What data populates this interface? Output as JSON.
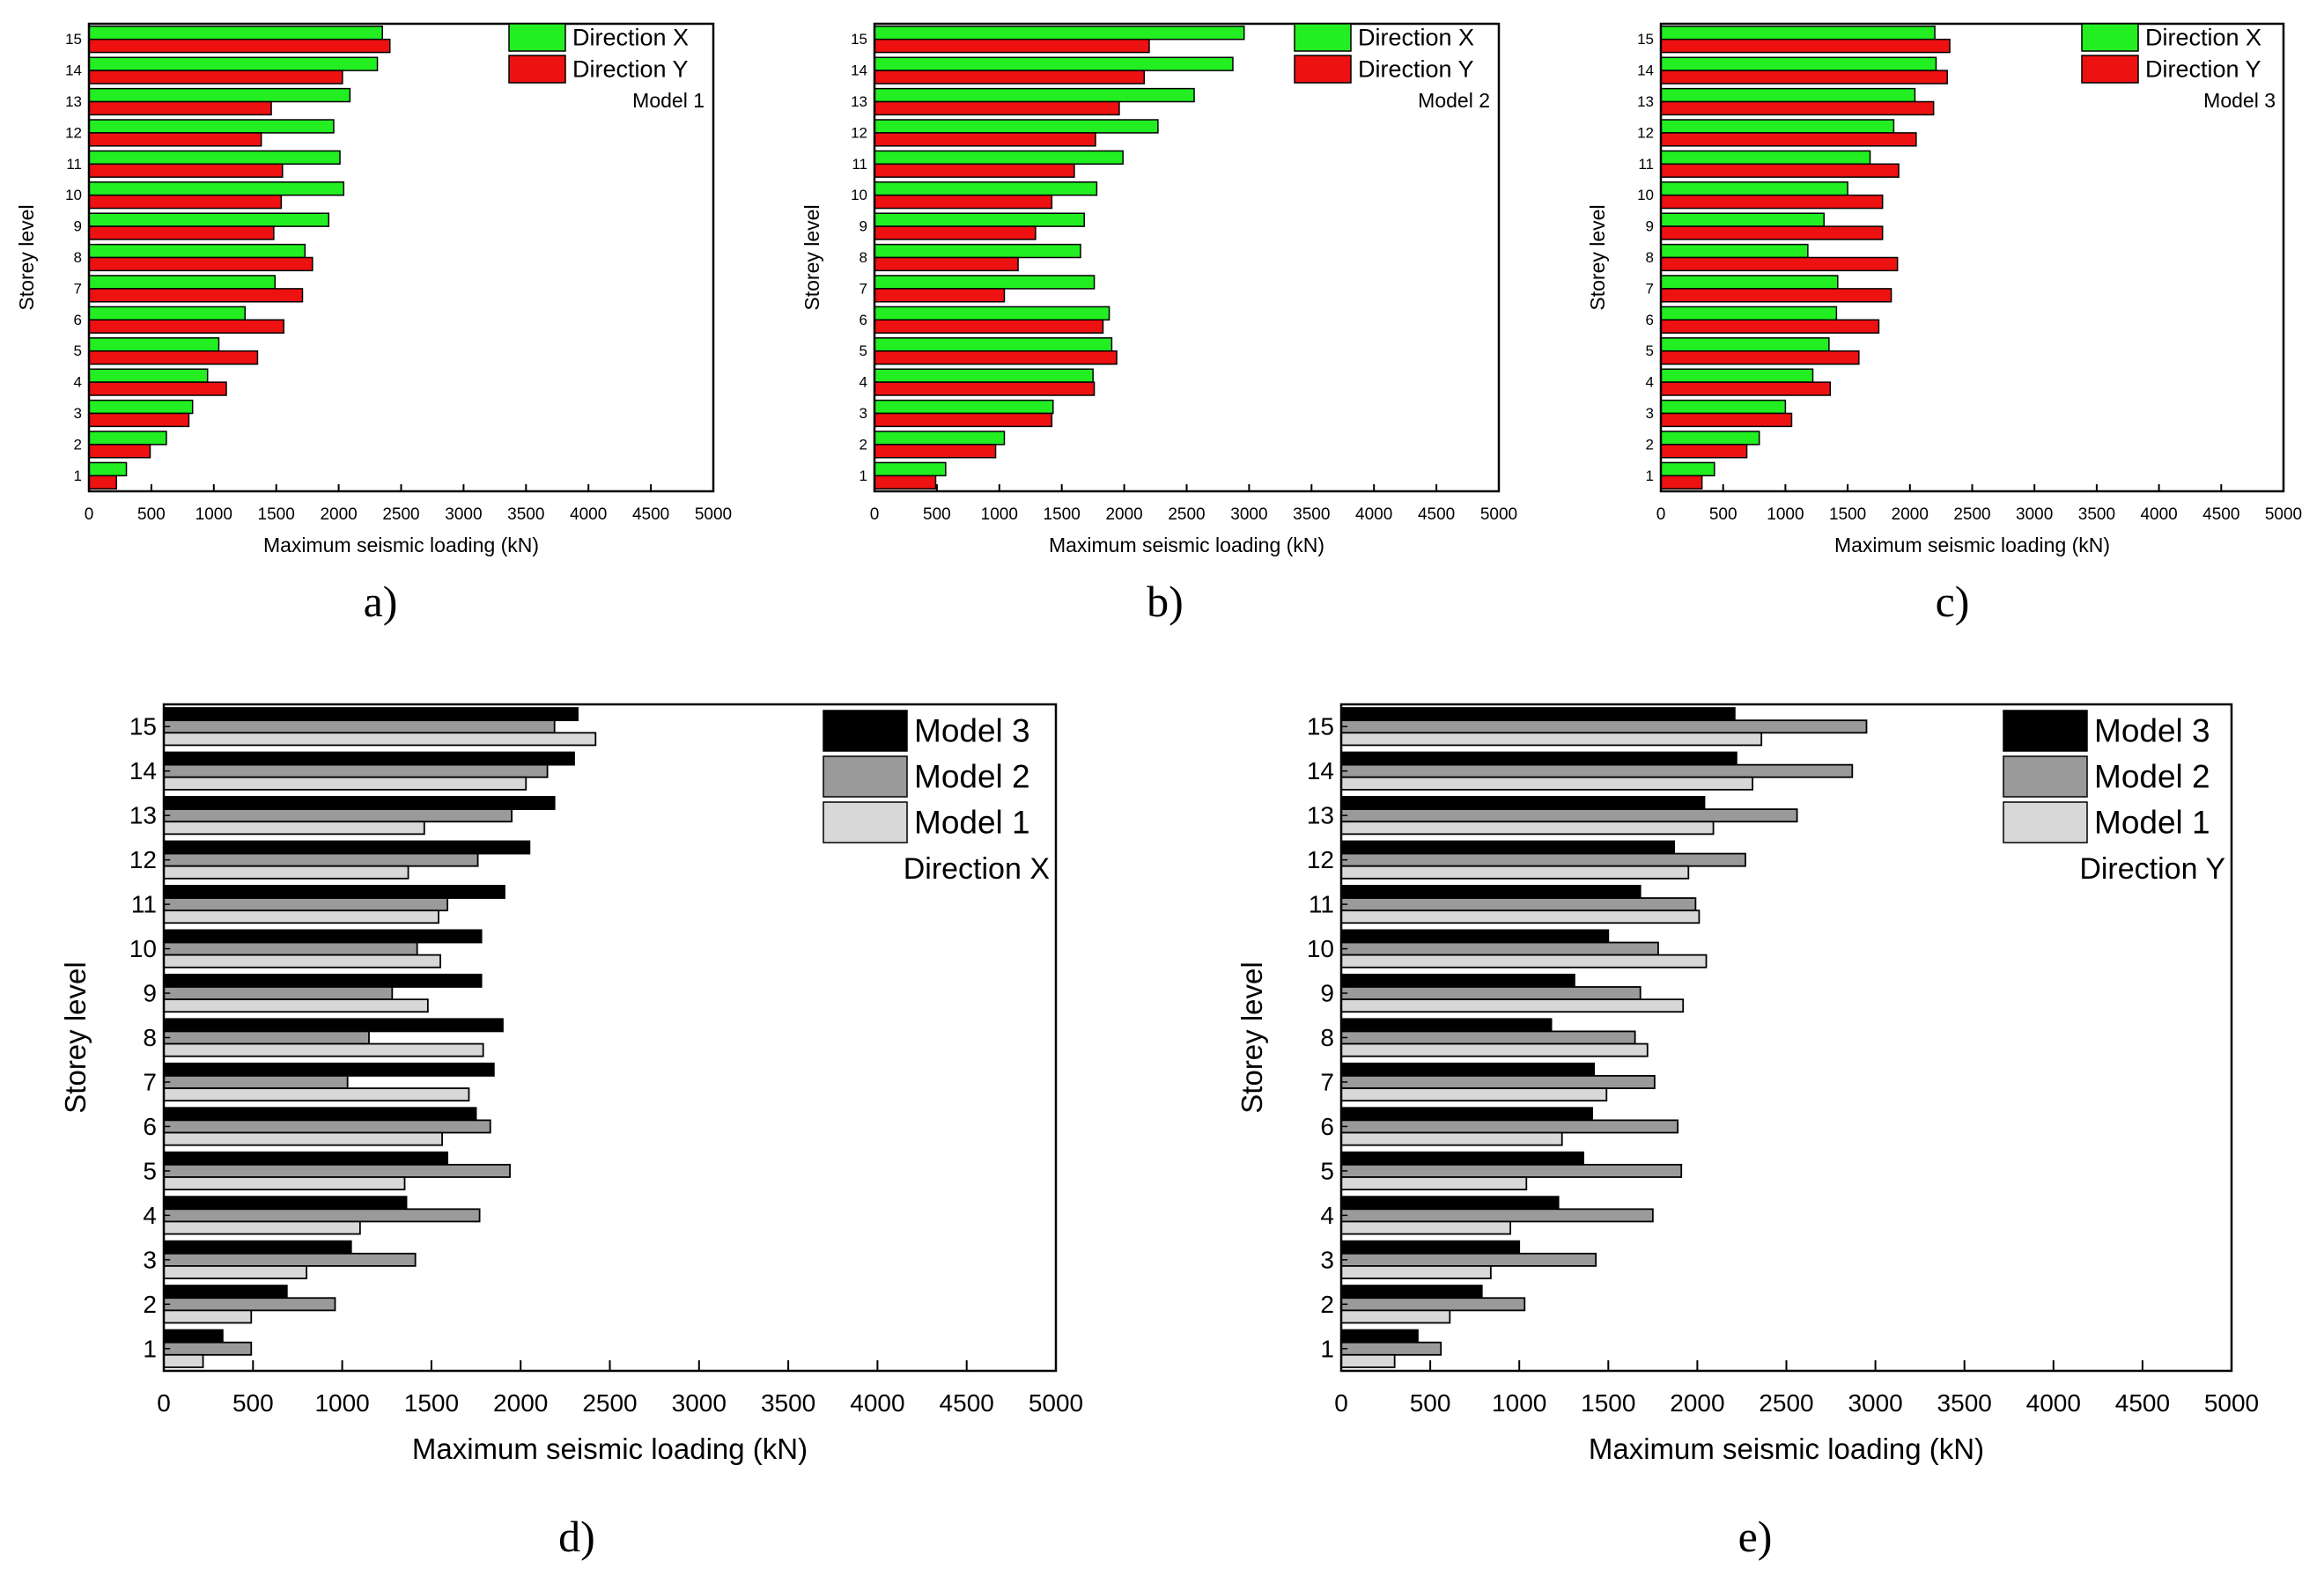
{
  "chart_data": [
    {
      "panel": "a)",
      "type": "bar",
      "orientation": "horizontal",
      "categories": [
        "1",
        "2",
        "3",
        "4",
        "5",
        "6",
        "7",
        "8",
        "9",
        "10",
        "11",
        "12",
        "13",
        "14",
        "15"
      ],
      "xlabel": "Maximum seismic loading (kN)",
      "ylabel": "Storey level",
      "xlim": [
        0,
        5000
      ],
      "xticks": [
        0,
        500,
        1000,
        1500,
        2000,
        2500,
        3000,
        3500,
        4000,
        4500,
        5000
      ],
      "legend_position": "top-right",
      "annotation": "Model 1",
      "grid": false,
      "series": [
        {
          "name": "Direction X",
          "color": "#22ee22",
          "values": [
            300,
            620,
            830,
            950,
            1040,
            1250,
            1490,
            1730,
            1920,
            2040,
            2010,
            1960,
            2090,
            2310,
            2350
          ]
        },
        {
          "name": "Direction Y",
          "color": "#ee1111",
          "values": [
            220,
            490,
            800,
            1100,
            1350,
            1560,
            1710,
            1790,
            1480,
            1540,
            1550,
            1380,
            1460,
            2030,
            2410
          ]
        }
      ]
    },
    {
      "panel": "b)",
      "type": "bar",
      "orientation": "horizontal",
      "categories": [
        "1",
        "2",
        "3",
        "4",
        "5",
        "6",
        "7",
        "8",
        "9",
        "10",
        "11",
        "12",
        "13",
        "14",
        "15"
      ],
      "xlabel": "Maximum seismic loading (kN)",
      "ylabel": "Storey level",
      "xlim": [
        0,
        5000
      ],
      "xticks": [
        0,
        500,
        1000,
        1500,
        2000,
        2500,
        3000,
        3500,
        4000,
        4500,
        5000
      ],
      "legend_position": "top-right",
      "annotation": "Model 2",
      "grid": false,
      "series": [
        {
          "name": "Direction X",
          "color": "#22ee22",
          "values": [
            570,
            1040,
            1430,
            1750,
            1900,
            1880,
            1760,
            1650,
            1680,
            1780,
            1990,
            2270,
            2560,
            2870,
            2960
          ]
        },
        {
          "name": "Direction Y",
          "color": "#ee1111",
          "values": [
            490,
            970,
            1420,
            1760,
            1940,
            1830,
            1040,
            1150,
            1290,
            1420,
            1600,
            1770,
            1960,
            2160,
            2200
          ]
        }
      ]
    },
    {
      "panel": "c)",
      "type": "bar",
      "orientation": "horizontal",
      "categories": [
        "1",
        "2",
        "3",
        "4",
        "5",
        "6",
        "7",
        "8",
        "9",
        "10",
        "11",
        "12",
        "13",
        "14",
        "15"
      ],
      "xlabel": "Maximum seismic loading (kN)",
      "ylabel": "Storey level",
      "xlim": [
        0,
        5000
      ],
      "xticks": [
        0,
        500,
        1000,
        1500,
        2000,
        2500,
        3000,
        3500,
        4000,
        4500,
        5000
      ],
      "legend_position": "top-right",
      "annotation": "Model 3",
      "grid": false,
      "series": [
        {
          "name": "Direction X",
          "color": "#22ee22",
          "values": [
            430,
            790,
            1000,
            1220,
            1350,
            1410,
            1420,
            1180,
            1310,
            1500,
            1680,
            1870,
            2040,
            2210,
            2200
          ]
        },
        {
          "name": "Direction Y",
          "color": "#ee1111",
          "values": [
            330,
            690,
            1050,
            1360,
            1590,
            1750,
            1850,
            1900,
            1780,
            1780,
            1910,
            2050,
            2190,
            2300,
            2320
          ]
        }
      ]
    },
    {
      "panel": "d)",
      "type": "bar",
      "orientation": "horizontal",
      "categories": [
        "1",
        "2",
        "3",
        "4",
        "5",
        "6",
        "7",
        "8",
        "9",
        "10",
        "11",
        "12",
        "13",
        "14",
        "15"
      ],
      "xlabel": "Maximum seismic loading (kN)",
      "ylabel": "Storey level",
      "xlim": [
        0,
        5000
      ],
      "xticks": [
        0,
        500,
        1000,
        1500,
        2000,
        2500,
        3000,
        3500,
        4000,
        4500,
        5000
      ],
      "legend_position": "top-right",
      "annotation": "Direction X",
      "grid": false,
      "series": [
        {
          "name": "Model 3",
          "color": "#000000",
          "values": [
            330,
            690,
            1050,
            1360,
            1590,
            1750,
            1850,
            1900,
            1780,
            1780,
            1910,
            2050,
            2190,
            2300,
            2320
          ]
        },
        {
          "name": "Model 2",
          "color": "#9a9a9a",
          "values": [
            490,
            960,
            1410,
            1770,
            1940,
            1830,
            1030,
            1150,
            1280,
            1420,
            1590,
            1760,
            1950,
            2150,
            2190
          ]
        },
        {
          "name": "Model 1",
          "color": "#d8d8d8",
          "values": [
            220,
            490,
            800,
            1100,
            1350,
            1560,
            1710,
            1790,
            1480,
            1550,
            1540,
            1370,
            1460,
            2030,
            2420
          ]
        }
      ]
    },
    {
      "panel": "e)",
      "type": "bar",
      "orientation": "horizontal",
      "categories": [
        "1",
        "2",
        "3",
        "4",
        "5",
        "6",
        "7",
        "8",
        "9",
        "10",
        "11",
        "12",
        "13",
        "14",
        "15"
      ],
      "xlabel": "Maximum seismic loading (kN)",
      "ylabel": "Storey level",
      "xlim": [
        0,
        5000
      ],
      "xticks": [
        0,
        500,
        1000,
        1500,
        2000,
        2500,
        3000,
        3500,
        4000,
        4500,
        5000
      ],
      "legend_position": "top-right",
      "annotation": "Direction Y",
      "grid": false,
      "series": [
        {
          "name": "Model 3",
          "color": "#000000",
          "values": [
            430,
            790,
            1000,
            1220,
            1360,
            1410,
            1420,
            1180,
            1310,
            1500,
            1680,
            1870,
            2040,
            2220,
            2210
          ]
        },
        {
          "name": "Model 2",
          "color": "#9a9a9a",
          "values": [
            560,
            1030,
            1430,
            1750,
            1910,
            1890,
            1760,
            1650,
            1680,
            1780,
            1990,
            2270,
            2560,
            2870,
            2950
          ]
        },
        {
          "name": "Model 1",
          "color": "#d8d8d8",
          "values": [
            300,
            610,
            840,
            950,
            1040,
            1240,
            1490,
            1720,
            1920,
            2050,
            2010,
            1950,
            2090,
            2310,
            2360
          ]
        }
      ]
    }
  ]
}
